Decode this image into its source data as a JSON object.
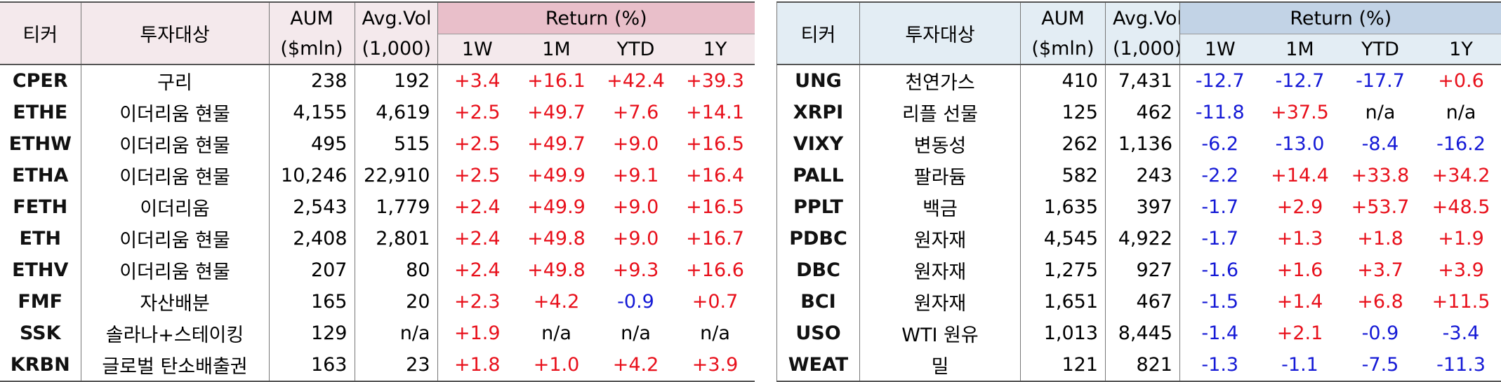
{
  "left": {
    "headers": {
      "ticker": "티커",
      "target": "투자대상",
      "aum_1": "AUM",
      "aum_2": "($mln)",
      "vol_1": "Avg.Vol",
      "vol_2": "(1,000)",
      "return": "Return (%)",
      "r1w": "1W",
      "r1m": "1M",
      "rytd": "YTD",
      "r1y": "1Y"
    },
    "rows": [
      {
        "ticker": "CPER",
        "target": "구리",
        "aum": "238",
        "vol": "192",
        "r1w": "+3.4",
        "r1m": "+16.1",
        "rytd": "+42.4",
        "r1y": "+39.3"
      },
      {
        "ticker": "ETHE",
        "target": "이더리움 현물",
        "aum": "4,155",
        "vol": "4,619",
        "r1w": "+2.5",
        "r1m": "+49.7",
        "rytd": "+7.6",
        "r1y": "+14.1"
      },
      {
        "ticker": "ETHW",
        "target": "이더리움 현물",
        "aum": "495",
        "vol": "515",
        "r1w": "+2.5",
        "r1m": "+49.7",
        "rytd": "+9.0",
        "r1y": "+16.5"
      },
      {
        "ticker": "ETHA",
        "target": "이더리움 현물",
        "aum": "10,246",
        "vol": "22,910",
        "r1w": "+2.5",
        "r1m": "+49.9",
        "rytd": "+9.1",
        "r1y": "+16.4"
      },
      {
        "ticker": "FETH",
        "target": "이더리움",
        "aum": "2,543",
        "vol": "1,779",
        "r1w": "+2.4",
        "r1m": "+49.9",
        "rytd": "+9.0",
        "r1y": "+16.5"
      },
      {
        "ticker": "ETH",
        "target": "이더리움 현물",
        "aum": "2,408",
        "vol": "2,801",
        "r1w": "+2.4",
        "r1m": "+49.8",
        "rytd": "+9.0",
        "r1y": "+16.7"
      },
      {
        "ticker": "ETHV",
        "target": "이더리움 현물",
        "aum": "207",
        "vol": "80",
        "r1w": "+2.4",
        "r1m": "+49.8",
        "rytd": "+9.3",
        "r1y": "+16.6"
      },
      {
        "ticker": "FMF",
        "target": "자산배분",
        "aum": "165",
        "vol": "20",
        "r1w": "+2.3",
        "r1m": "+4.2",
        "rytd": "-0.9",
        "r1y": "+0.7"
      },
      {
        "ticker": "SSK",
        "target": "솔라나+스테이킹",
        "aum": "129",
        "vol": "n/a",
        "r1w": "+1.9",
        "r1m": "n/a",
        "rytd": "n/a",
        "r1y": "n/a"
      },
      {
        "ticker": "KRBN",
        "target": "글로벌 탄소배출권",
        "aum": "163",
        "vol": "23",
        "r1w": "+1.8",
        "r1m": "+1.0",
        "rytd": "+4.2",
        "r1y": "+3.9"
      }
    ]
  },
  "right": {
    "headers": {
      "ticker": "티커",
      "target": "투자대상",
      "aum_1": "AUM",
      "aum_2": "($mln)",
      "vol_1": "Avg.Vol",
      "vol_2": "(1,000)",
      "return": "Return (%)",
      "r1w": "1W",
      "r1m": "1M",
      "rytd": "YTD",
      "r1y": "1Y"
    },
    "rows": [
      {
        "ticker": "UNG",
        "target": "천연가스",
        "aum": "410",
        "vol": "7,431",
        "r1w": "-12.7",
        "r1m": "-12.7",
        "rytd": "-17.7",
        "r1y": "+0.6"
      },
      {
        "ticker": "XRPI",
        "target": "리플 선물",
        "aum": "125",
        "vol": "462",
        "r1w": "-11.8",
        "r1m": "+37.5",
        "rytd": "n/a",
        "r1y": "n/a"
      },
      {
        "ticker": "VIXY",
        "target": "변동성",
        "aum": "262",
        "vol": "1,136",
        "r1w": "-6.2",
        "r1m": "-13.0",
        "rytd": "-8.4",
        "r1y": "-16.2"
      },
      {
        "ticker": "PALL",
        "target": "팔라듐",
        "aum": "582",
        "vol": "243",
        "r1w": "-2.2",
        "r1m": "+14.4",
        "rytd": "+33.8",
        "r1y": "+34.2"
      },
      {
        "ticker": "PPLT",
        "target": "백금",
        "aum": "1,635",
        "vol": "397",
        "r1w": "-1.7",
        "r1m": "+2.9",
        "rytd": "+53.7",
        "r1y": "+48.5"
      },
      {
        "ticker": "PDBC",
        "target": "원자재",
        "aum": "4,545",
        "vol": "4,922",
        "r1w": "-1.7",
        "r1m": "+1.3",
        "rytd": "+1.8",
        "r1y": "+1.9"
      },
      {
        "ticker": "DBC",
        "target": "원자재",
        "aum": "1,275",
        "vol": "927",
        "r1w": "-1.6",
        "r1m": "+1.6",
        "rytd": "+3.7",
        "r1y": "+3.9"
      },
      {
        "ticker": "BCI",
        "target": "원자재",
        "aum": "1,651",
        "vol": "467",
        "r1w": "-1.5",
        "r1m": "+1.4",
        "rytd": "+6.8",
        "r1y": "+11.5"
      },
      {
        "ticker": "USO",
        "target": "WTI 원유",
        "aum": "1,013",
        "vol": "8,445",
        "r1w": "-1.4",
        "r1m": "+2.1",
        "rytd": "-0.9",
        "r1y": "-3.4"
      },
      {
        "ticker": "WEAT",
        "target": "밀",
        "aum": "121",
        "vol": "821",
        "r1w": "-1.3",
        "r1m": "-1.1",
        "rytd": "-7.5",
        "r1y": "-11.3"
      }
    ]
  },
  "colors": {
    "positive": "#e8101b",
    "negative": "#1419d6",
    "left_header": "#f4e9ec",
    "left_return_header": "#e9bfca",
    "right_header": "#e3edf4",
    "right_return_header": "#c2d3e6"
  }
}
